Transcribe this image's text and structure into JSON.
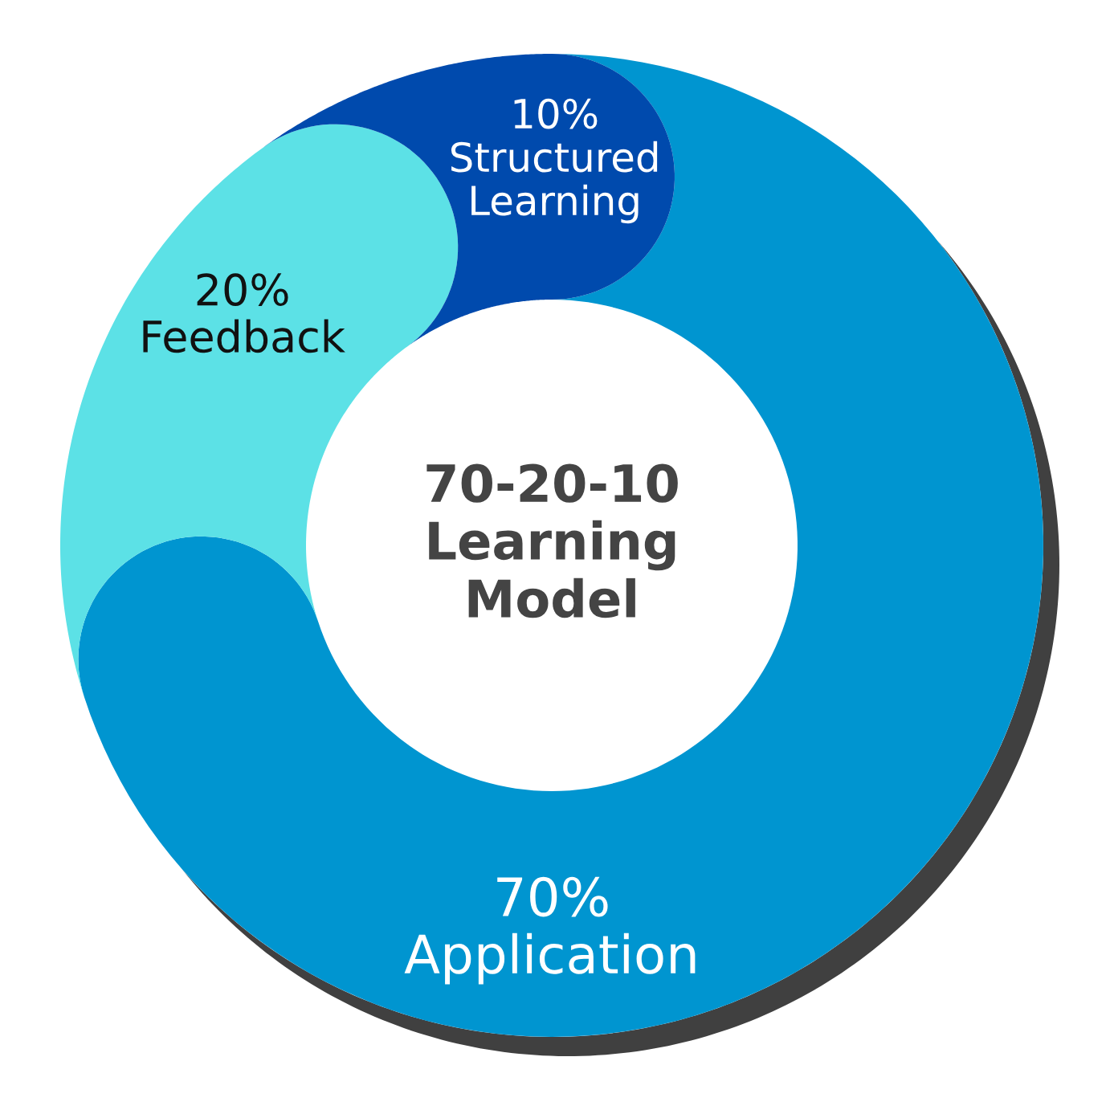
{
  "chart_data": {
    "type": "donut",
    "title": "70-20-10\nLearning\nModel",
    "categories": [
      "Application",
      "Feedback",
      "Structured\nLearning"
    ],
    "values": [
      70,
      20,
      10
    ],
    "colors": [
      "#0095d0",
      "#5ce1e6",
      "#004aad"
    ],
    "value_labels": [
      "70%",
      "20%",
      "10%"
    ]
  }
}
